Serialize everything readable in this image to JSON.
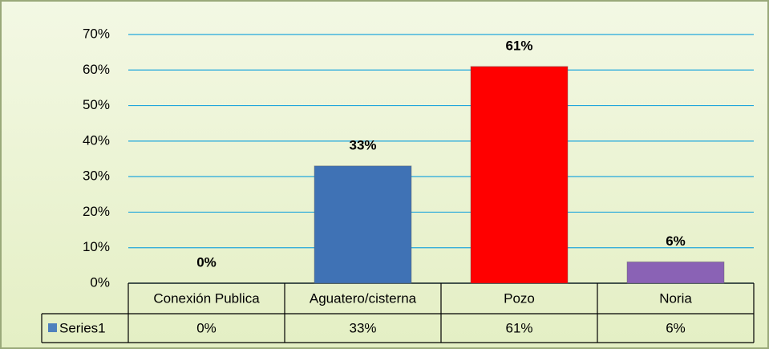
{
  "chart_data": {
    "type": "bar",
    "categories": [
      "Conexión Publica",
      "Aguatero/cisterna",
      "Pozo",
      "Noria"
    ],
    "series": [
      {
        "name": "Series1",
        "color": "#4f81bd",
        "values": [
          0,
          33,
          61,
          6
        ],
        "value_labels": [
          "0%",
          "33%",
          "61%",
          "6%"
        ],
        "point_colors": [
          "#4f81bd",
          "#3f72b5",
          "#ff0000",
          "#8a62b5"
        ]
      }
    ],
    "ylim": [
      0,
      70
    ],
    "yticks": [
      {
        "value": 0,
        "label": "0%"
      },
      {
        "value": 10,
        "label": "10%"
      },
      {
        "value": 20,
        "label": "20%"
      },
      {
        "value": 30,
        "label": "30%"
      },
      {
        "value": 40,
        "label": "40%"
      },
      {
        "value": 50,
        "label": "50%"
      },
      {
        "value": 60,
        "label": "60%"
      },
      {
        "value": 70,
        "label": "70%"
      }
    ],
    "grid": true,
    "data_table": true
  }
}
